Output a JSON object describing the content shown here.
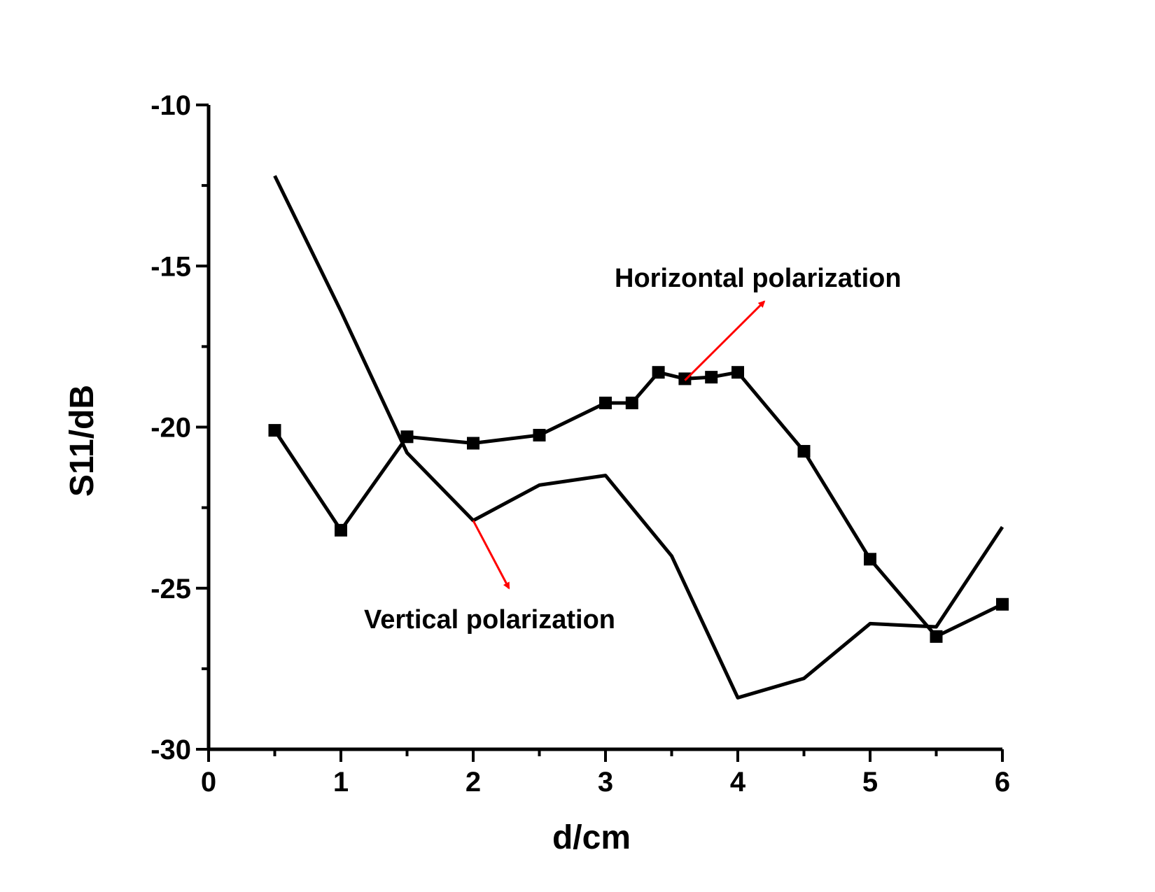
{
  "chart_data": {
    "type": "line",
    "title": "",
    "xlabel": "d/cm",
    "ylabel": "S11/dB",
    "xlim": [
      0,
      6
    ],
    "ylim": [
      -30,
      -10
    ],
    "x_ticks": [
      "0",
      "1",
      "2",
      "3",
      "4",
      "5",
      "6"
    ],
    "y_ticks": [
      "-10",
      "-15",
      "-20",
      "-25",
      "-30"
    ],
    "grid": false,
    "legend": "none",
    "colors": {
      "line": "#000000",
      "arrow": "#ff0000"
    },
    "series": [
      {
        "marker": "square",
        "x": [
          0.5,
          1.0,
          1.5,
          2.0,
          2.5,
          3.0,
          3.2,
          3.4,
          3.6,
          3.8,
          4.0,
          4.5,
          5.0,
          5.5,
          6.0
        ],
        "y": [
          -20.1,
          -23.2,
          -20.3,
          -20.5,
          -20.25,
          -19.25,
          -19.25,
          -18.3,
          -18.5,
          -18.45,
          -18.3,
          -20.75,
          -24.1,
          -26.5,
          -25.5
        ]
      },
      {
        "marker": "none",
        "x": [
          0.5,
          1.0,
          1.5,
          2.0,
          2.5,
          3.0,
          3.5,
          4.0,
          4.5,
          5.0,
          5.5,
          6.0
        ],
        "y": [
          -12.2,
          -16.4,
          -20.8,
          -22.9,
          -21.8,
          -21.5,
          -24.0,
          -28.4,
          -27.8,
          -26.1,
          -26.2,
          -23.1
        ]
      }
    ],
    "annotations": [
      {
        "text": "Horizontal polarization",
        "arrow_from": [
          3.6,
          -18.55
        ],
        "arrow_to": [
          4.2,
          -16.1
        ]
      },
      {
        "text": "Vertical polarization",
        "arrow_from": [
          2.0,
          -22.9
        ],
        "arrow_to": [
          2.27,
          -25.0
        ]
      }
    ]
  }
}
